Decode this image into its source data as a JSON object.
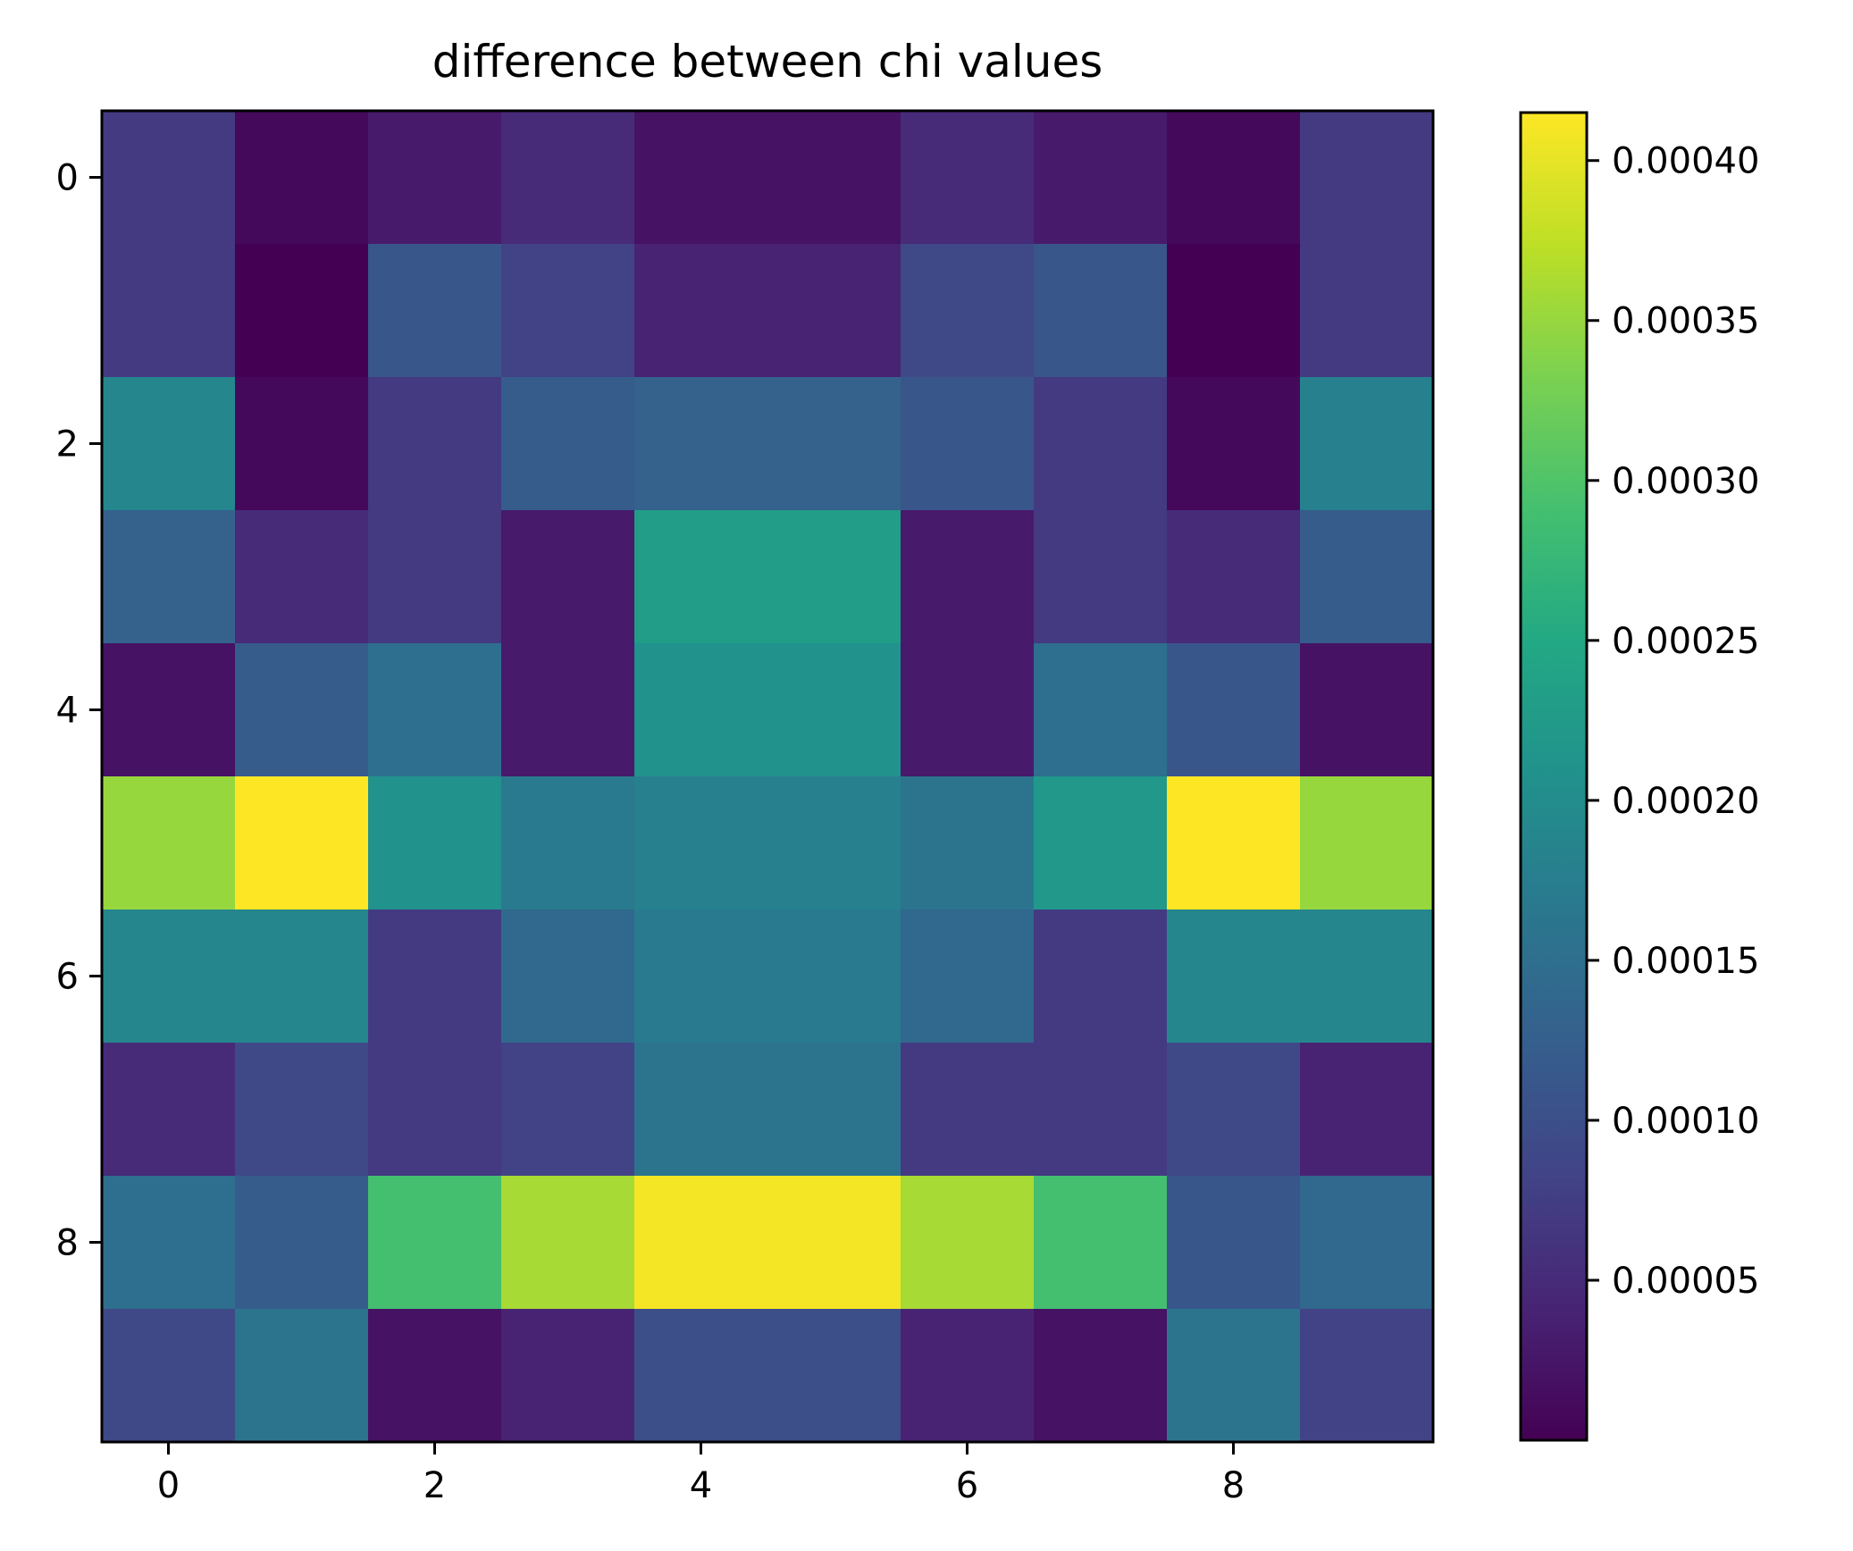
{
  "chart_data": {
    "type": "heatmap",
    "title": "difference between chi values",
    "xlabel": "",
    "ylabel": "",
    "colormap": "viridis",
    "grid": false,
    "x_ticks": [
      0,
      2,
      4,
      6,
      8
    ],
    "y_ticks": [
      0,
      2,
      4,
      6,
      8
    ],
    "xlim": [
      -0.5,
      9.5
    ],
    "ylim": [
      9.5,
      -0.5
    ],
    "values": [
      [
        7e-05,
        1e-05,
        3e-05,
        5e-05,
        2e-05,
        2e-05,
        5e-05,
        3e-05,
        1e-05,
        7e-05
      ],
      [
        7e-05,
        0.0,
        0.00011,
        8e-05,
        4e-05,
        4e-05,
        9e-05,
        0.00011,
        0.0,
        7e-05
      ],
      [
        0.00019,
        1e-05,
        7e-05,
        0.00012,
        0.00013,
        0.00013,
        0.00011,
        7e-05,
        1e-05,
        0.00018
      ],
      [
        0.00013,
        5e-05,
        7e-05,
        3e-05,
        0.00023,
        0.00023,
        3e-05,
        7e-05,
        5e-05,
        0.00012
      ],
      [
        2e-05,
        0.00012,
        0.00015,
        3e-05,
        0.00021,
        0.00021,
        3e-05,
        0.00015,
        0.00011,
        2e-05
      ],
      [
        0.00035,
        0.000415,
        0.00021,
        0.00017,
        0.00018,
        0.00018,
        0.00016,
        0.00022,
        0.000415,
        0.00035
      ],
      [
        0.00019,
        0.00019,
        7e-05,
        0.00014,
        0.00017,
        0.00017,
        0.00014,
        7e-05,
        0.00019,
        0.00019
      ],
      [
        5e-05,
        9e-05,
        7e-05,
        8e-05,
        0.00016,
        0.00016,
        7e-05,
        7e-05,
        9e-05,
        4e-05
      ],
      [
        0.00015,
        0.00012,
        0.00029,
        0.00036,
        0.00041,
        0.00041,
        0.00036,
        0.00029,
        0.00011,
        0.00014
      ],
      [
        9e-05,
        0.00016,
        2e-05,
        4e-05,
        0.0001,
        0.0001,
        4e-05,
        2e-05,
        0.00016,
        8e-05
      ]
    ],
    "colorbar": {
      "min": 0.0,
      "max": 0.000415,
      "ticks": [
        5e-05,
        0.0001,
        0.00015,
        0.0002,
        0.00025,
        0.0003,
        0.00035,
        0.0004
      ],
      "tick_labels": [
        "0.00005",
        "0.00010",
        "0.00015",
        "0.00020",
        "0.00025",
        "0.00030",
        "0.00035",
        "0.00040"
      ]
    }
  }
}
